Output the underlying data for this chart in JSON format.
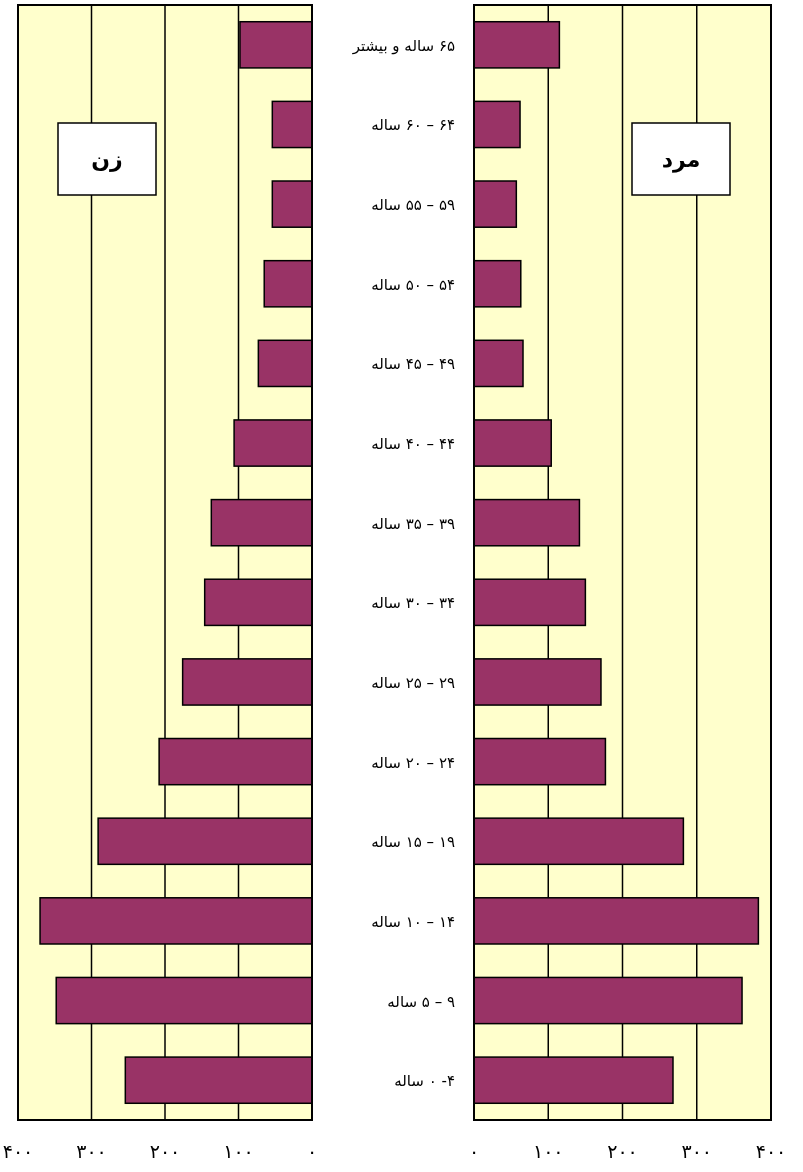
{
  "chart_data": [
    {
      "type": "bar",
      "orientation": "horizontal",
      "title": "زن",
      "color": "#993366",
      "grid": "x",
      "tick_labels": "x",
      "categories": [
        null,
        null,
        null,
        null,
        null,
        null,
        null,
        null,
        null,
        null,
        null,
        null,
        null,
        null
      ],
      "values": [
        98,
        54,
        54,
        65,
        73,
        106,
        137,
        146,
        176,
        208,
        291,
        370,
        348,
        254
      ],
      "xlim": [
        400,
        0
      ],
      "xticks": [
        {
          "value": 400,
          "label": "۴۰۰"
        },
        {
          "value": 300,
          "label": "۳۰۰"
        },
        {
          "value": 200,
          "label": "۲۰۰"
        },
        {
          "value": 100,
          "label": "۱۰۰"
        },
        {
          "value": 0,
          "label": "۰"
        }
      ]
    },
    {
      "type": "bar",
      "orientation": "horizontal",
      "title": "مرد",
      "color": "#993366",
      "grid": "x",
      "categories": [
        "۶۵ ساله و بیشتر",
        "۶۴ – ۶۰ ساله",
        "۵۹ – ۵۵ ساله",
        "۵۴ – ۵۰ ساله",
        "۴۹ – ۴۵ ساله",
        "۴۴ – ۴۰ ساله",
        "۳۹ – ۳۵ ساله",
        "۳۴ – ۳۰ ساله",
        "۲۹ – ۲۵ ساله",
        "۲۴ – ۲۰ ساله",
        "۱۹ – ۱۵ ساله",
        "۱۴ – ۱۰ ساله",
        "۹ – ۵ ساله",
        "۴- ۰ ساله"
      ],
      "values": [
        115,
        62,
        57,
        63,
        66,
        104,
        142,
        150,
        171,
        177,
        282,
        383,
        361,
        268
      ],
      "xlim": [
        0,
        400
      ],
      "xticks": [
        {
          "value": 0,
          "label": "۰"
        },
        {
          "value": 100,
          "label": "۱۰۰"
        },
        {
          "value": 200,
          "label": "۲۰۰"
        },
        {
          "value": 300,
          "label": "۳۰۰"
        },
        {
          "value": 400,
          "label": "۴۰۰"
        }
      ]
    }
  ]
}
